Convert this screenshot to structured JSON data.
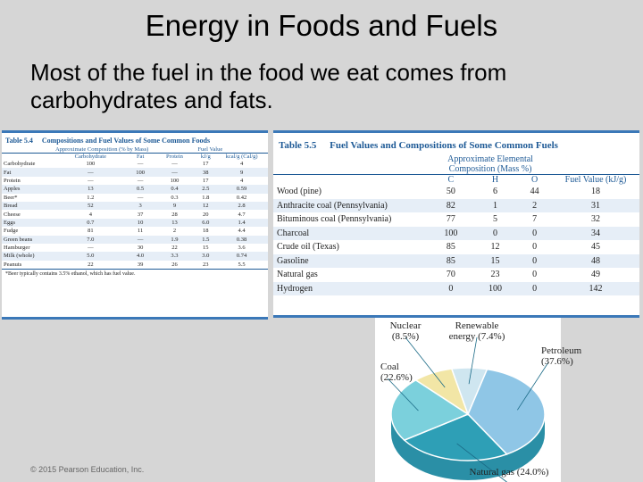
{
  "slide": {
    "title": "Energy in Foods and Fuels",
    "body": "Most of the fuel in the food we eat comes from carbohydrates and fats.",
    "credit": "© 2015 Pearson Education, Inc."
  },
  "table_5_4": {
    "number": "Table 5.4",
    "title": "Compositions and Fuel Values of Some Common Foods",
    "group_headers": [
      "Approximate Composition (% by Mass)",
      "Fuel Value"
    ],
    "columns": [
      "",
      "Carbohydrate",
      "Fat",
      "Protein",
      "kJ/g",
      "kcal/g (Cal/g)"
    ],
    "rows": [
      [
        "Carbohydrate",
        "100",
        "—",
        "—",
        "17",
        "4"
      ],
      [
        "Fat",
        "—",
        "100",
        "—",
        "38",
        "9"
      ],
      [
        "Protein",
        "—",
        "—",
        "100",
        "17",
        "4"
      ],
      [
        "Apples",
        "13",
        "0.5",
        "0.4",
        "2.5",
        "0.59"
      ],
      [
        "Beer*",
        "1.2",
        "—",
        "0.3",
        "1.8",
        "0.42"
      ],
      [
        "Bread",
        "52",
        "3",
        "9",
        "12",
        "2.8"
      ],
      [
        "Cheese",
        "4",
        "37",
        "28",
        "20",
        "4.7"
      ],
      [
        "Eggs",
        "0.7",
        "10",
        "13",
        "6.0",
        "1.4"
      ],
      [
        "Fudge",
        "81",
        "11",
        "2",
        "18",
        "4.4"
      ],
      [
        "Green beans",
        "7.0",
        "—",
        "1.9",
        "1.5",
        "0.38"
      ],
      [
        "Hamburger",
        "—",
        "30",
        "22",
        "15",
        "3.6"
      ],
      [
        "Milk (whole)",
        "5.0",
        "4.0",
        "3.3",
        "3.0",
        "0.74"
      ],
      [
        "Peanuts",
        "22",
        "39",
        "26",
        "23",
        "5.5"
      ]
    ],
    "footnote": "*Beer typically contains 3.5% ethanol, which has fuel value."
  },
  "table_5_5": {
    "number": "Table 5.5",
    "title": "Fuel Values and Compositions of Some Common Fuels",
    "group_header": "Approximate Elemental Composition (Mass %)",
    "columns": [
      "",
      "C",
      "H",
      "O",
      "Fuel Value (kJ/g)"
    ],
    "rows": [
      [
        "Wood (pine)",
        "50",
        "6",
        "44",
        "18"
      ],
      [
        "Anthracite coal (Pennsylvania)",
        "82",
        "1",
        "2",
        "31"
      ],
      [
        "Bituminous coal (Pennsylvania)",
        "77",
        "5",
        "7",
        "32"
      ],
      [
        "Charcoal",
        "100",
        "0",
        "0",
        "34"
      ],
      [
        "Crude oil (Texas)",
        "85",
        "12",
        "0",
        "45"
      ],
      [
        "Gasoline",
        "85",
        "15",
        "0",
        "48"
      ],
      [
        "Natural gas",
        "70",
        "23",
        "0",
        "49"
      ],
      [
        "Hydrogen",
        "0",
        "100",
        "0",
        "142"
      ]
    ]
  },
  "chart_data": {
    "type": "pie",
    "categories": [
      "Petroleum",
      "Natural gas",
      "Coal",
      "Nuclear",
      "Renewable energy"
    ],
    "values": [
      37.6,
      24.0,
      22.6,
      8.5,
      7.4
    ],
    "labels": [
      "Petroleum (37.6%)",
      "Natural gas (24.0%)",
      "Coal (22.6%)",
      "Nuclear (8.5%)",
      "Renewable energy (7.4%)"
    ],
    "colors": [
      "#8fc6e6",
      "#2e9fb6",
      "#7bd0dc",
      "#f2e6a6",
      "#cfe6f0"
    ]
  }
}
